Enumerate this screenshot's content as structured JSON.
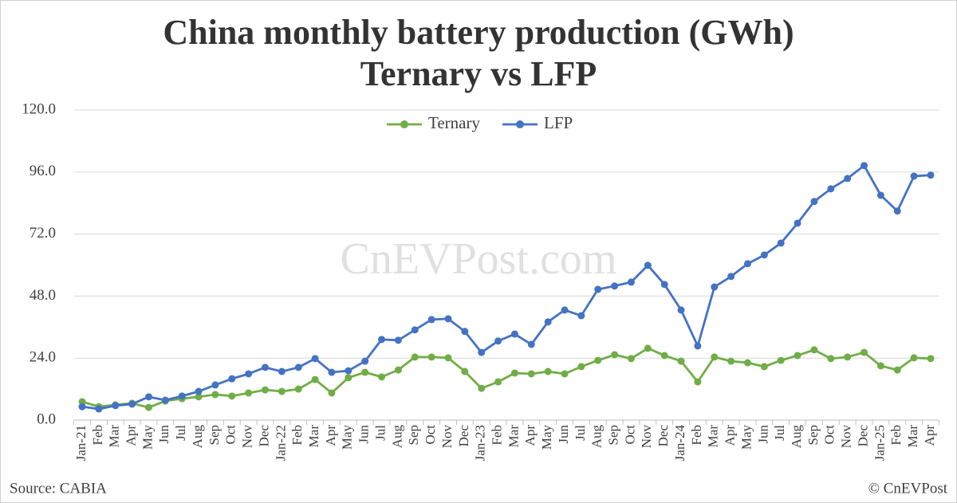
{
  "chart_data": {
    "type": "line",
    "title": "China monthly battery production (GWh)",
    "subtitle": "Ternary vs LFP",
    "watermark": "CnEVPost.com",
    "source": "Source: CABIA",
    "credit": "© CnEVPost",
    "categories": [
      "Jan-21",
      "Feb",
      "Mar",
      "Apr",
      "May",
      "Jun",
      "Jul",
      "Aug",
      "Sep",
      "Oct",
      "Nov",
      "Dec",
      "Jan-22",
      "Feb",
      "Mar",
      "Apr",
      "May",
      "Jun",
      "Jul",
      "Aug",
      "Sep",
      "Oct",
      "Nov",
      "Dec",
      "Jan-23",
      "Feb",
      "Mar",
      "Apr",
      "May",
      "Jun",
      "Jul",
      "Aug",
      "Sep",
      "Oct",
      "Nov",
      "Dec",
      "Jan-24",
      "Feb",
      "Mar",
      "Apr",
      "May",
      "Jun",
      "Jul",
      "Aug",
      "Sep",
      "Oct",
      "Nov",
      "Dec",
      "Jan-25",
      "Feb",
      "Mar",
      "Apr"
    ],
    "series": [
      {
        "name": "Ternary",
        "color": "#70ad47",
        "values": [
          7.1,
          5.2,
          5.9,
          6.5,
          4.9,
          7.4,
          8.3,
          9.0,
          9.9,
          9.3,
          10.5,
          11.7,
          11.1,
          12.0,
          15.7,
          10.5,
          16.4,
          18.5,
          16.7,
          19.4,
          24.4,
          24.4,
          24.1,
          18.8,
          12.3,
          14.8,
          18.2,
          17.9,
          18.8,
          17.9,
          20.7,
          23.1,
          25.3,
          23.8,
          27.8,
          25.0,
          22.8,
          14.8,
          24.4,
          22.8,
          22.2,
          20.7,
          23.1,
          25.0,
          27.2,
          23.8,
          24.4,
          26.2,
          21.0,
          19.4,
          24.1,
          23.8
        ]
      },
      {
        "name": "LFP",
        "color": "#4472c4",
        "values": [
          5.2,
          4.3,
          5.6,
          6.2,
          9.0,
          7.7,
          9.3,
          11.1,
          13.6,
          16.0,
          17.9,
          20.4,
          18.8,
          20.4,
          23.8,
          18.5,
          19.1,
          22.8,
          31.2,
          30.9,
          34.9,
          38.9,
          39.2,
          34.3,
          26.2,
          30.6,
          33.3,
          29.3,
          38.0,
          42.6,
          40.4,
          50.6,
          51.9,
          53.4,
          59.9,
          52.5,
          42.6,
          28.7,
          51.5,
          55.6,
          60.5,
          63.9,
          68.5,
          76.2,
          84.6,
          89.5,
          93.5,
          98.5,
          87.0,
          80.9,
          94.4,
          94.8
        ]
      }
    ],
    "ylim": [
      0,
      120
    ],
    "yticks": [
      {
        "value": 0,
        "label": "0.0"
      },
      {
        "value": 24,
        "label": "24.0"
      },
      {
        "value": 48,
        "label": "48.0"
      },
      {
        "value": 72,
        "label": "72.0"
      },
      {
        "value": 96,
        "label": "96.0"
      },
      {
        "value": 120,
        "label": "120.0"
      }
    ],
    "grid": true,
    "legend": "top"
  }
}
